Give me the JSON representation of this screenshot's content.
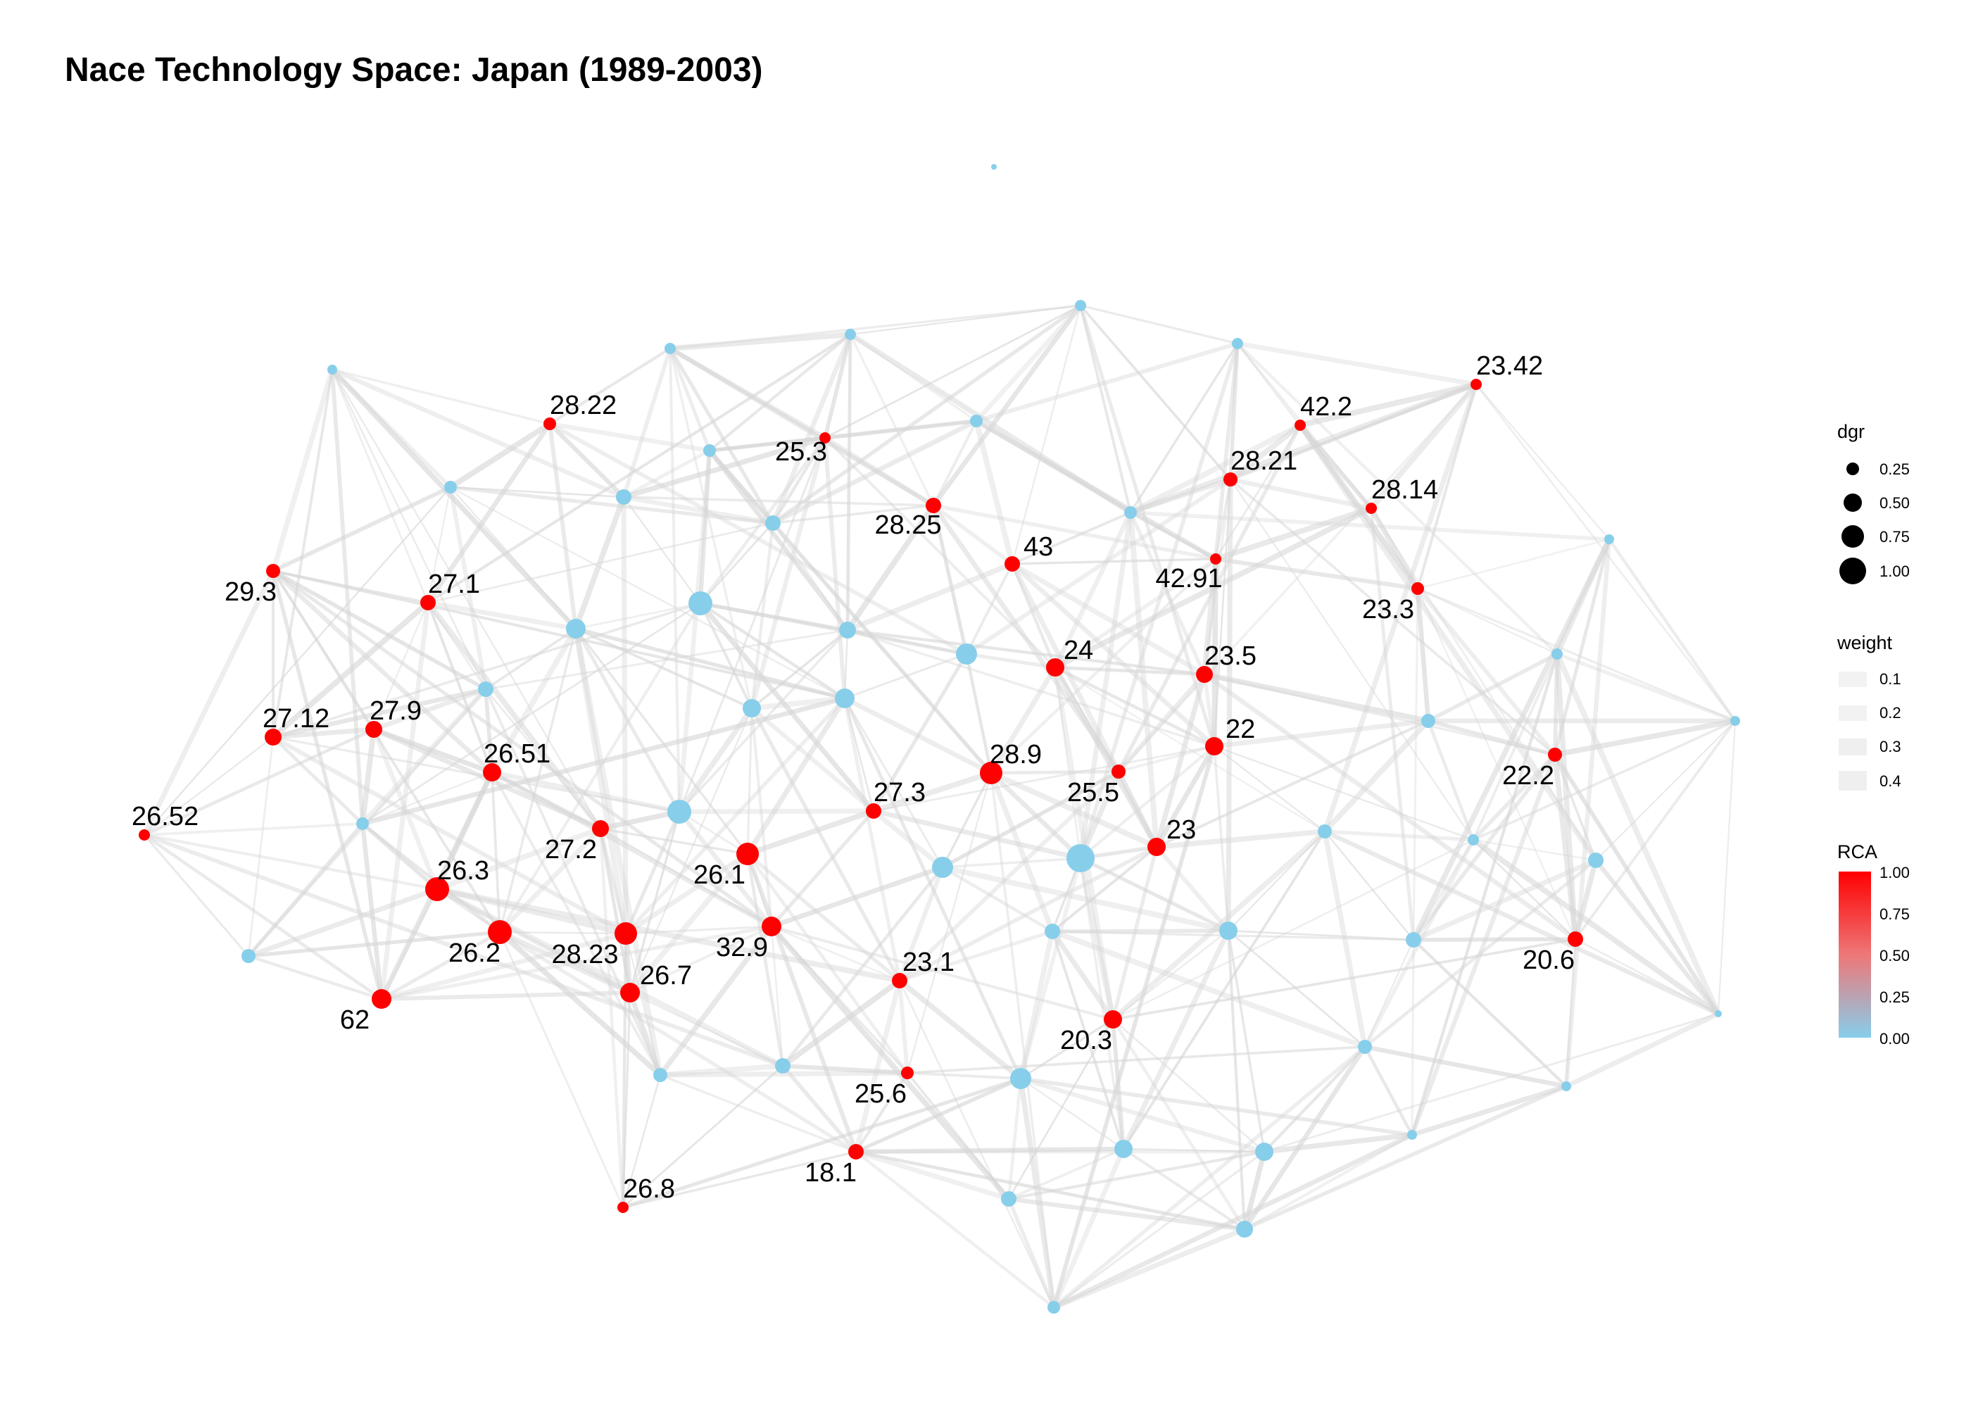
{
  "title": "Nace Technology Space: Japan (1989-2003)",
  "colors": {
    "rca_low": "#87ceeb",
    "rca_high": "#ff0000",
    "edge": "#d6d6d6",
    "label": "#000000"
  },
  "legend": {
    "dgr": {
      "title": "dgr",
      "labels": [
        "0.25",
        "0.50",
        "0.75",
        "1.00"
      ]
    },
    "weight": {
      "title": "weight",
      "labels": [
        "0.1",
        "0.2",
        "0.3",
        "0.4"
      ]
    },
    "rca": {
      "title": "RCA",
      "labels": [
        "1.00",
        "0.75",
        "0.50",
        "0.25",
        "0.00"
      ]
    }
  },
  "labels": {
    "28.22": "28.22",
    "25.3": "25.3",
    "42.2": "42.2",
    "23.42": "23.42",
    "28.21": "28.21",
    "28.14": "28.14",
    "28.25": "28.25",
    "43": "43",
    "42.91": "42.91",
    "23.3": "23.3",
    "29.3": "29.3",
    "27.1": "27.1",
    "24": "24",
    "23.5": "23.5",
    "27.12": "27.12",
    "27.9": "27.9",
    "22": "22",
    "28.9": "28.9",
    "26.51": "26.51",
    "22.2": "22.2",
    "26.52": "26.52",
    "27.3": "27.3",
    "25.5": "25.5",
    "23": "23",
    "27.2": "27.2",
    "26.3": "26.3",
    "26.1": "26.1",
    "26.2": "26.2",
    "28.23": "28.23",
    "32.9": "32.9",
    "20.6": "20.6",
    "23.1": "23.1",
    "26.7": "26.7",
    "62": "62",
    "20.3": "20.3",
    "25.6": "25.6",
    "18.1": "18.1",
    "26.8": "26.8"
  }
}
